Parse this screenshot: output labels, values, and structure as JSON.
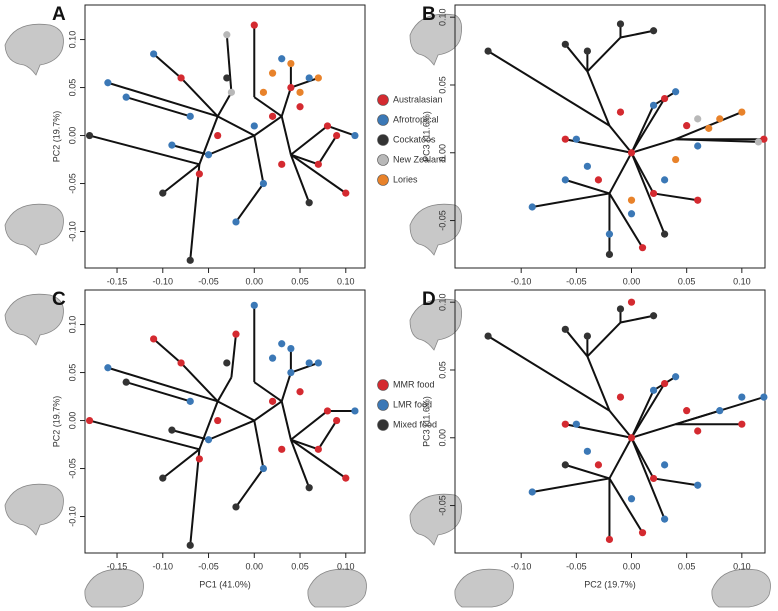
{
  "chart_data": [
    {
      "type": "scatter",
      "panel": "A",
      "ylabel": "PC2 (19.7%)",
      "xlim": [
        -0.185,
        0.121
      ],
      "ylim": [
        -0.138,
        0.136
      ],
      "xticks": [
        -0.15,
        {
          "value": -0.1,
          "label": "-0.10"
        },
        -0.05,
        {
          "value": 0,
          "label": "0.00"
        },
        {
          "value": 0.05,
          "label": "0.05"
        },
        {
          "value": 0.1,
          "label": "0.10"
        }
      ],
      "yticks": [
        {
          "value": -0.1,
          "label": "-0.10"
        },
        -0.05,
        {
          "value": 0,
          "label": "0.00"
        },
        {
          "value": 0.05,
          "label": "0.05"
        },
        {
          "value": 0.1,
          "label": "0.10"
        }
      ],
      "legend": "right",
      "edges": [
        [
          0,
          0,
          -0.04,
          0.02
        ],
        [
          0,
          0,
          0.03,
          0.02
        ],
        [
          -0.04,
          0.02,
          -0.06,
          -0.03
        ],
        [
          0.03,
          0.02,
          0.04,
          -0.02
        ],
        [
          0,
          0.115,
          0,
          0.04
        ],
        [
          0,
          0.04,
          0.03,
          0.02
        ],
        [
          -0.18,
          0,
          -0.06,
          -0.03
        ],
        [
          -0.07,
          -0.13,
          -0.06,
          -0.03
        ],
        [
          -0.1,
          -0.06,
          -0.06,
          -0.03
        ],
        [
          -0.16,
          0.055,
          -0.04,
          0.02
        ],
        [
          -0.11,
          0.085,
          -0.08,
          0.06
        ],
        [
          -0.08,
          0.06,
          -0.04,
          0.02
        ],
        [
          -0.14,
          0.04,
          -0.07,
          0.02
        ],
        [
          -0.03,
          0.105,
          -0.025,
          0.045
        ],
        [
          -0.025,
          0.045,
          -0.04,
          0.02
        ],
        [
          0.04,
          0.075,
          0.04,
          0.05
        ],
        [
          0.07,
          0.06,
          0.04,
          0.05
        ],
        [
          0.04,
          0.05,
          0.03,
          0.02
        ],
        [
          0.1,
          -0.06,
          0.04,
          -0.02
        ],
        [
          0.06,
          -0.07,
          0.04,
          -0.02
        ],
        [
          0.11,
          0,
          0.08,
          0.01
        ],
        [
          0.08,
          0.01,
          0.04,
          -0.02
        ],
        [
          -0.02,
          -0.09,
          0.01,
          -0.05
        ],
        [
          0.01,
          -0.05,
          0,
          0
        ],
        [
          0.09,
          0,
          0.07,
          -0.03
        ],
        [
          0.07,
          -0.03,
          0.04,
          -0.02
        ],
        [
          -0.09,
          -0.01,
          -0.05,
          -0.02
        ],
        [
          -0.05,
          -0.02,
          0,
          0
        ]
      ],
      "series": [
        {
          "name": "Australasian",
          "color": "#d42a30",
          "x": [
            0,
            0.08,
            0.05,
            0.1,
            0.03,
            -0.08,
            -0.04,
            0.02,
            0.07,
            -0.06,
            0.04,
            0.09
          ],
          "y": [
            0.115,
            0.01,
            0.03,
            -0.06,
            -0.03,
            0.06,
            0,
            0.02,
            -0.03,
            -0.04,
            0.05,
            0
          ]
        },
        {
          "name": "Afrotropical",
          "color": "#3b78b6",
          "x": [
            -0.16,
            -0.11,
            -0.14,
            -0.07,
            -0.02,
            0.01,
            0.03,
            -0.05,
            0.06,
            0.11,
            -0.09,
            0
          ],
          "y": [
            0.055,
            0.085,
            0.04,
            0.02,
            -0.09,
            -0.05,
            0.08,
            -0.02,
            0.06,
            0,
            -0.01,
            0.01
          ]
        },
        {
          "name": "Cockatoos",
          "color": "#333333",
          "x": [
            -0.18,
            -0.07,
            -0.1,
            0.06,
            -0.03
          ],
          "y": [
            0,
            -0.13,
            -0.06,
            -0.07,
            0.06
          ]
        },
        {
          "name": "New Zealand",
          "color": "#b8b8b8",
          "x": [
            -0.03,
            -0.025
          ],
          "y": [
            0.105,
            0.045
          ]
        },
        {
          "name": "Lories",
          "color": "#e8822a",
          "x": [
            0.02,
            0.04,
            0.07,
            0.01,
            0.05
          ],
          "y": [
            0.065,
            0.075,
            0.06,
            0.045,
            0.045
          ]
        }
      ]
    },
    {
      "type": "scatter",
      "panel": "B",
      "ylabel": "PC3 (11.6%)",
      "xlim": [
        -0.16,
        0.121
      ],
      "ylim": [
        -0.085,
        0.109
      ],
      "xticks": [
        {
          "value": -0.1,
          "label": "-0.10"
        },
        -0.05,
        {
          "value": 0,
          "label": "0.00"
        },
        {
          "value": 0.05,
          "label": "0.05"
        },
        {
          "value": 0.1,
          "label": "0.10"
        }
      ],
      "yticks": [
        -0.05,
        {
          "value": 0,
          "label": "0.00"
        },
        {
          "value": 0.05,
          "label": "0.05"
        },
        {
          "value": 0.1,
          "label": "0.10"
        }
      ],
      "edges": [
        [
          -0.02,
          0.02,
          -0.04,
          0.06
        ],
        [
          -0.04,
          0.06,
          -0.06,
          0.08
        ],
        [
          -0.04,
          0.06,
          -0.01,
          0.085
        ],
        [
          -0.01,
          0.085,
          -0.01,
          0.095
        ],
        [
          -0.01,
          0.085,
          0.02,
          0.09
        ],
        [
          -0.04,
          0.06,
          -0.04,
          0.075
        ],
        [
          -0.13,
          0.075,
          -0.02,
          0.02
        ],
        [
          0,
          0,
          -0.02,
          0.02
        ],
        [
          0,
          0,
          0.04,
          0.01
        ],
        [
          0.04,
          0.01,
          0.12,
          0.01
        ],
        [
          0.04,
          0.01,
          0.1,
          0.03
        ],
        [
          0.04,
          0.01,
          0.115,
          0.008
        ],
        [
          0,
          0,
          -0.02,
          -0.03
        ],
        [
          -0.02,
          -0.03,
          -0.09,
          -0.04
        ],
        [
          -0.02,
          -0.03,
          -0.02,
          -0.075
        ],
        [
          -0.02,
          -0.03,
          0.01,
          -0.07
        ],
        [
          0,
          0,
          0.03,
          -0.06
        ],
        [
          0,
          0,
          -0.06,
          0.01
        ],
        [
          0.03,
          0.04,
          0,
          0
        ],
        [
          0.04,
          0.045,
          0.02,
          0.035
        ],
        [
          0.02,
          0.035,
          0,
          0
        ],
        [
          0.06,
          -0.035,
          0.02,
          -0.03
        ],
        [
          0.02,
          -0.03,
          0,
          0
        ],
        [
          -0.06,
          -0.02,
          -0.02,
          -0.03
        ]
      ],
      "series": [
        {
          "name": "Australasian",
          "color": "#d42a30",
          "x": [
            0.03,
            0.12,
            -0.06,
            0.02,
            0.06,
            0,
            -0.03,
            0.05,
            -0.01,
            0.01
          ],
          "y": [
            0.04,
            0.01,
            0.01,
            -0.03,
            -0.035,
            0,
            -0.02,
            0.02,
            0.03,
            -0.07
          ]
        },
        {
          "name": "Afrotropical",
          "color": "#3b78b6",
          "x": [
            -0.09,
            0.04,
            -0.05,
            0.03,
            -0.02,
            0.06,
            -0.04,
            0.02,
            0,
            -0.06
          ],
          "y": [
            -0.04,
            0.045,
            0.01,
            -0.02,
            -0.06,
            0.005,
            -0.01,
            0.035,
            -0.045,
            -0.02
          ]
        },
        {
          "name": "Cockatoos",
          "color": "#333333",
          "x": [
            -0.13,
            -0.01,
            -0.04,
            -0.06,
            0.02,
            -0.02,
            0.03
          ],
          "y": [
            0.075,
            0.095,
            0.075,
            0.08,
            0.09,
            -0.075,
            -0.06
          ]
        },
        {
          "name": "New Zealand",
          "color": "#b8b8b8",
          "x": [
            0.115,
            0.06
          ],
          "y": [
            0.008,
            0.025
          ]
        },
        {
          "name": "Lories",
          "color": "#e8822a",
          "x": [
            0.1,
            0.07,
            0.04,
            0.08,
            0
          ],
          "y": [
            0.03,
            0.018,
            -0.005,
            0.025,
            -0.035
          ]
        }
      ]
    },
    {
      "type": "scatter",
      "panel": "C",
      "xlabel": "PC1 (41.0%)",
      "ylabel": "PC2 (19.7%)",
      "xlim": [
        -0.185,
        0.121
      ],
      "ylim": [
        -0.138,
        0.136
      ],
      "xticks": [
        -0.15,
        {
          "value": -0.1,
          "label": "-0.10"
        },
        -0.05,
        {
          "value": 0,
          "label": "0.00"
        },
        {
          "value": 0.05,
          "label": "0.05"
        },
        {
          "value": 0.1,
          "label": "0.10"
        }
      ],
      "yticks": [
        {
          "value": -0.1,
          "label": "-0.10"
        },
        -0.05,
        {
          "value": 0,
          "label": "0.00"
        },
        {
          "value": 0.05,
          "label": "0.05"
        },
        {
          "value": 0.1,
          "label": "0.10"
        }
      ],
      "legend": "right",
      "edges": [
        [
          0,
          0,
          -0.04,
          0.02
        ],
        [
          0,
          0,
          0.03,
          0.02
        ],
        [
          -0.04,
          0.02,
          -0.06,
          -0.03
        ],
        [
          0.03,
          0.02,
          0.04,
          -0.02
        ],
        [
          0,
          0.12,
          0,
          0.04
        ],
        [
          0,
          0.04,
          0.03,
          0.02
        ],
        [
          -0.18,
          0,
          -0.06,
          -0.03
        ],
        [
          -0.07,
          -0.13,
          -0.06,
          -0.03
        ],
        [
          -0.1,
          -0.06,
          -0.06,
          -0.03
        ],
        [
          -0.16,
          0.055,
          -0.04,
          0.02
        ],
        [
          -0.11,
          0.085,
          -0.08,
          0.06
        ],
        [
          -0.08,
          0.06,
          -0.04,
          0.02
        ],
        [
          -0.14,
          0.04,
          -0.07,
          0.02
        ],
        [
          -0.02,
          0.09,
          -0.025,
          0.045
        ],
        [
          -0.025,
          0.045,
          -0.04,
          0.02
        ],
        [
          0.04,
          0.075,
          0.04,
          0.05
        ],
        [
          0.07,
          0.06,
          0.04,
          0.05
        ],
        [
          0.04,
          0.05,
          0.03,
          0.02
        ],
        [
          0.1,
          -0.06,
          0.04,
          -0.02
        ],
        [
          0.06,
          -0.07,
          0.04,
          -0.02
        ],
        [
          0.11,
          0.01,
          0.08,
          0.01
        ],
        [
          0.08,
          0.01,
          0.04,
          -0.02
        ],
        [
          -0.02,
          -0.09,
          0.01,
          -0.05
        ],
        [
          0.01,
          -0.05,
          0,
          0
        ],
        [
          0.09,
          0,
          0.07,
          -0.03
        ],
        [
          0.07,
          -0.03,
          0.04,
          -0.02
        ],
        [
          -0.09,
          -0.01,
          -0.05,
          -0.02
        ],
        [
          -0.05,
          -0.02,
          0,
          0
        ]
      ],
      "series": [
        {
          "name": "MMR food",
          "color": "#d42a30",
          "x": [
            -0.18,
            -0.11,
            -0.08,
            0.08,
            0.05,
            0.1,
            0.03,
            -0.04,
            0.02,
            -0.06,
            0.07,
            0.09,
            -0.02
          ],
          "y": [
            0,
            0.085,
            0.06,
            0.01,
            0.03,
            -0.06,
            -0.03,
            0,
            0.02,
            -0.04,
            -0.03,
            0,
            0.09
          ]
        },
        {
          "name": "LMR food",
          "color": "#3b78b6",
          "x": [
            -0.16,
            -0.07,
            0,
            0.01,
            0.03,
            0.06,
            0.11,
            0.04,
            0.07,
            -0.05,
            0.02,
            0.04
          ],
          "y": [
            0.055,
            0.02,
            0.12,
            -0.05,
            0.08,
            0.06,
            0.01,
            0.075,
            0.06,
            -0.02,
            0.065,
            0.05
          ]
        },
        {
          "name": "Mixed food",
          "color": "#333333",
          "x": [
            -0.14,
            -0.07,
            -0.1,
            0.06,
            -0.03,
            -0.09,
            -0.02
          ],
          "y": [
            0.04,
            -0.13,
            -0.06,
            -0.07,
            0.06,
            -0.01,
            -0.09
          ]
        }
      ]
    },
    {
      "type": "scatter",
      "panel": "D",
      "xlabel": "PC2 (19.7%)",
      "ylabel": "PC3 (11.6%)",
      "xlim": [
        -0.16,
        0.121
      ],
      "ylim": [
        -0.085,
        0.109
      ],
      "xticks": [
        {
          "value": -0.1,
          "label": "-0.10"
        },
        -0.05,
        {
          "value": 0,
          "label": "0.00"
        },
        {
          "value": 0.05,
          "label": "0.05"
        },
        {
          "value": 0.1,
          "label": "0.10"
        }
      ],
      "yticks": [
        -0.05,
        {
          "value": 0,
          "label": "0.00"
        },
        {
          "value": 0.05,
          "label": "0.05"
        },
        {
          "value": 0.1,
          "label": "0.10"
        }
      ],
      "edges": [
        [
          -0.02,
          0.02,
          -0.04,
          0.06
        ],
        [
          -0.04,
          0.06,
          -0.06,
          0.08
        ],
        [
          -0.04,
          0.06,
          -0.01,
          0.085
        ],
        [
          -0.01,
          0.085,
          -0.01,
          0.095
        ],
        [
          -0.01,
          0.085,
          0.02,
          0.09
        ],
        [
          -0.04,
          0.06,
          -0.04,
          0.075
        ],
        [
          -0.13,
          0.075,
          -0.02,
          0.02
        ],
        [
          0,
          0,
          -0.02,
          0.02
        ],
        [
          0,
          0,
          0.04,
          0.01
        ],
        [
          0.04,
          0.01,
          0.12,
          0.03
        ],
        [
          0.04,
          0.01,
          0.1,
          0.01
        ],
        [
          0.04,
          0.01,
          0.08,
          0.02
        ],
        [
          0,
          0,
          -0.02,
          -0.03
        ],
        [
          -0.02,
          -0.03,
          -0.09,
          -0.04
        ],
        [
          -0.02,
          -0.03,
          -0.02,
          -0.075
        ],
        [
          -0.02,
          -0.03,
          0.01,
          -0.07
        ],
        [
          0,
          0,
          0.03,
          -0.06
        ],
        [
          0,
          0,
          -0.06,
          0.01
        ],
        [
          0.03,
          0.04,
          0,
          0
        ],
        [
          0.04,
          0.045,
          0.02,
          0.035
        ],
        [
          0.02,
          0.035,
          0,
          0
        ],
        [
          0.06,
          -0.035,
          0.02,
          -0.03
        ],
        [
          0.02,
          -0.03,
          0,
          0
        ],
        [
          -0.06,
          -0.02,
          -0.02,
          -0.03
        ]
      ],
      "series": [
        {
          "name": "MMR food",
          "color": "#d42a30",
          "x": [
            0.03,
            0.1,
            -0.06,
            0.02,
            0,
            -0.03,
            0.05,
            -0.01,
            0.01,
            -0.02,
            0,
            0.06
          ],
          "y": [
            0.04,
            0.01,
            0.01,
            -0.03,
            0,
            -0.02,
            0.02,
            0.03,
            -0.07,
            -0.075,
            0.1,
            0.005
          ]
        },
        {
          "name": "LMR food",
          "color": "#3b78b6",
          "x": [
            -0.09,
            0.04,
            -0.05,
            0.03,
            0.12,
            0.06,
            -0.04,
            0.02,
            0,
            0.08,
            0.03,
            0.1
          ],
          "y": [
            -0.04,
            0.045,
            0.01,
            -0.02,
            0.03,
            -0.035,
            -0.01,
            0.035,
            -0.045,
            0.02,
            -0.06,
            0.03
          ]
        },
        {
          "name": "Mixed food",
          "color": "#333333",
          "x": [
            -0.13,
            -0.01,
            -0.04,
            -0.06,
            0.02,
            -0.06
          ],
          "y": [
            0.075,
            0.095,
            0.075,
            0.08,
            0.09,
            -0.02
          ]
        }
      ]
    }
  ]
}
